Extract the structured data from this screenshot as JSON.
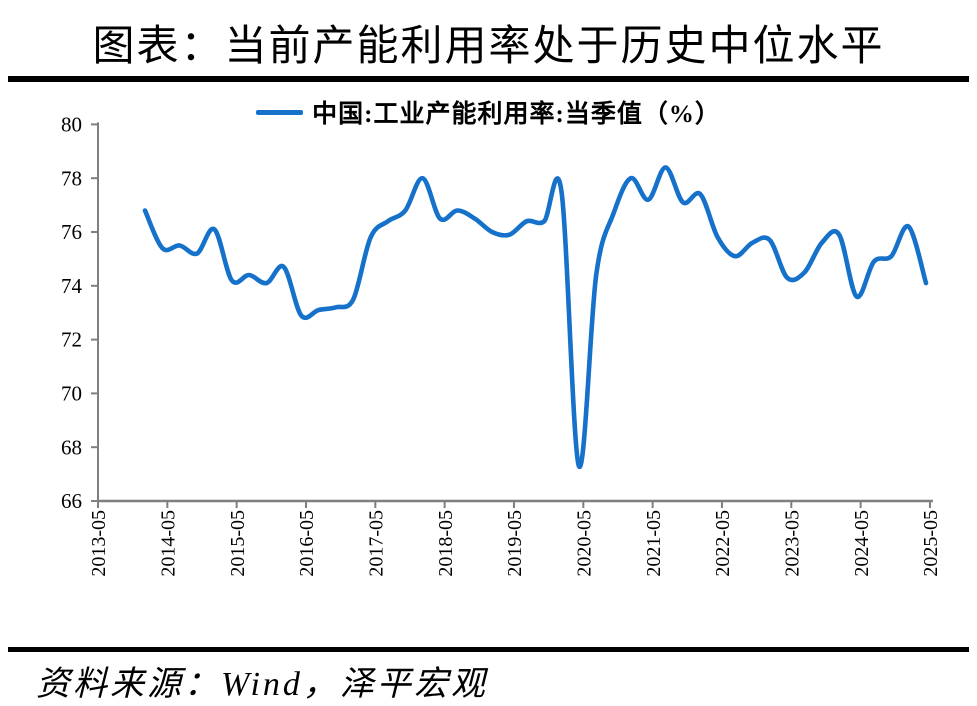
{
  "title": "图表：当前产能利用率处于历史中位水平",
  "legend": {
    "label": "中国:工业产能利用率:当季值（%）"
  },
  "source_note": "资料来源：Wind，泽平宏观",
  "colors": {
    "line": "#1571c9",
    "axis": "#7f7f7f",
    "text": "#000000",
    "rule": "#000000"
  },
  "chart_data": {
    "type": "line",
    "title": "图表：当前产能利用率处于历史中位水平",
    "series": [
      {
        "name": "中国:工业产能利用率:当季值（%）",
        "x": [
          "2013-12",
          "2014-03",
          "2014-06",
          "2014-09",
          "2014-12",
          "2015-03",
          "2015-06",
          "2015-09",
          "2015-12",
          "2016-03",
          "2016-06",
          "2016-09",
          "2016-12",
          "2017-03",
          "2017-06",
          "2017-09",
          "2017-12",
          "2018-03",
          "2018-06",
          "2018-09",
          "2018-12",
          "2019-03",
          "2019-06",
          "2019-09",
          "2019-12",
          "2020-03",
          "2020-06",
          "2020-09",
          "2020-12",
          "2021-03",
          "2021-06",
          "2021-09",
          "2021-12",
          "2022-03",
          "2022-06",
          "2022-09",
          "2022-12",
          "2023-03",
          "2023-06",
          "2023-09",
          "2023-12",
          "2024-03",
          "2024-06",
          "2024-09",
          "2024-12",
          "2025-03"
        ],
        "values": [
          76.8,
          75.4,
          75.5,
          75.2,
          76.1,
          74.2,
          74.4,
          74.1,
          74.7,
          72.9,
          73.1,
          73.2,
          73.5,
          75.8,
          76.4,
          76.8,
          78.0,
          76.5,
          76.8,
          76.5,
          76.0,
          75.9,
          76.4,
          76.4,
          77.5,
          67.3,
          74.4,
          76.7,
          78.0,
          77.2,
          78.4,
          77.1,
          77.4,
          75.8,
          75.1,
          75.6,
          75.7,
          74.3,
          74.5,
          75.6,
          75.9,
          73.6,
          74.9,
          75.1,
          76.2,
          74.1
        ]
      }
    ],
    "xlabel": "",
    "ylabel": "",
    "ylim": [
      66,
      80
    ],
    "yticks": [
      66,
      68,
      70,
      72,
      74,
      76,
      78,
      80
    ],
    "xtick_labels": [
      "2013-05",
      "2014-05",
      "2015-05",
      "2016-05",
      "2017-05",
      "2018-05",
      "2019-05",
      "2020-05",
      "2021-05",
      "2022-05",
      "2023-05",
      "2024-05",
      "2025-05"
    ],
    "grid": false,
    "smooth": true,
    "legend_position": "top"
  }
}
